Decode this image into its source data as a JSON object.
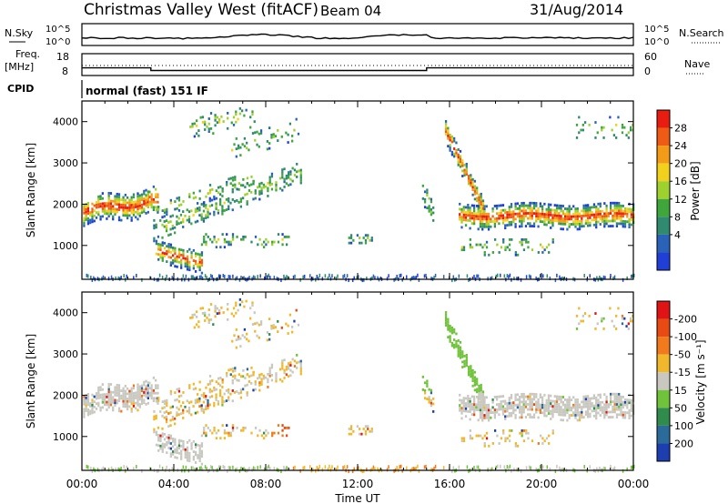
{
  "header": {
    "station": "Christmas Valley West (fitACF)",
    "beam": "Beam 04",
    "date": "31/Aug/2014"
  },
  "colors": {
    "power": [
      "#1f3fd6",
      "#2a62b8",
      "#2f8a6f",
      "#3ea63a",
      "#9ed12e",
      "#f2d11c",
      "#f39a17",
      "#ef5a14",
      "#e81c10"
    ],
    "velocity": [
      "#1d3eae",
      "#2a6b9a",
      "#2f8c4d",
      "#6fc23a",
      "#c8c8c0",
      "#f0b82a",
      "#f07a1c",
      "#e84a14",
      "#e01414"
    ]
  },
  "panels": {
    "nsky": {
      "label": "N.Sky",
      "right_label": "N.Search",
      "ticks_left": [
        "10^5",
        "10^0"
      ],
      "ticks_right": [
        "10^5",
        "10^0"
      ]
    },
    "freq": {
      "label_line1": "Freq.",
      "label_line2": "[MHz]",
      "ticks_left": [
        "18",
        "8"
      ],
      "ticks_right": [
        "60",
        "0"
      ],
      "right_label": "Nave",
      "steps_hours": [
        0,
        3,
        3,
        15,
        15,
        24
      ],
      "steps_mhz": [
        11.5,
        11.5,
        10.3,
        10.3,
        11.5,
        11.5
      ]
    },
    "cpid": {
      "label": "CPID",
      "text": "normal (fast) 151 IF"
    }
  },
  "chart_data": [
    {
      "type": "heatmap",
      "name": "power",
      "ylabel": "Slant Range [km]",
      "xlabel": "Time UT",
      "xlim_hours": [
        0,
        24
      ],
      "ylim_km": [
        180,
        4500
      ],
      "yticks": [
        1000,
        2000,
        3000,
        4000
      ],
      "xticks": [
        "00:00",
        "04:00",
        "08:00",
        "12:00",
        "16:00",
        "20:00",
        "00:00"
      ],
      "colorbar": {
        "label": "Power [dB]",
        "ticks": [
          "4",
          "8",
          "12",
          "16",
          "20",
          "24",
          "28"
        ]
      }
    },
    {
      "type": "heatmap",
      "name": "velocity",
      "ylabel": "Slant Range [km]",
      "xlabel": "Time UT",
      "xlim_hours": [
        0,
        24
      ],
      "ylim_km": [
        180,
        4500
      ],
      "yticks": [
        1000,
        2000,
        3000,
        4000
      ],
      "xticks": [
        "00:00",
        "04:00",
        "08:00",
        "12:00",
        "16:00",
        "20:00",
        "00:00"
      ],
      "colorbar": {
        "label": "Velocity [m s⁻¹]",
        "ticks": [
          "200",
          "100",
          "50",
          "15",
          "-15",
          "-50",
          "-100",
          "-200"
        ]
      }
    }
  ]
}
